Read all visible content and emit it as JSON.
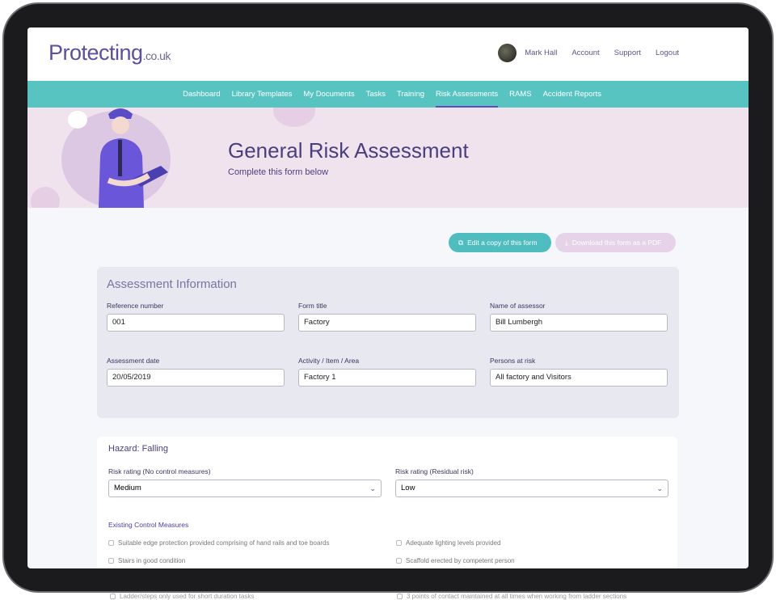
{
  "header": {
    "logo": "Protecting",
    "logo_suffix": ".co.uk",
    "user_name": "Mark Hall",
    "links": [
      "Account",
      "Support",
      "Logout"
    ]
  },
  "nav": {
    "items": [
      "Dashboard",
      "Library Templates",
      "My Documents",
      "Tasks",
      "Training",
      "Risk Assessments",
      "RAMS",
      "Accident Reports"
    ],
    "active": "Risk Assessments"
  },
  "hero": {
    "title": "General Risk Assessment",
    "subtitle": "Complete this form below"
  },
  "actions": {
    "edit_copy": "Edit a copy of this form",
    "download_pdf": "Download this form as a PDF"
  },
  "assessment": {
    "title": "Assessment Information",
    "fields": [
      {
        "label": "Reference number",
        "value": "001"
      },
      {
        "label": "Form title",
        "value": "Factory"
      },
      {
        "label": "Name of assessor",
        "value": "Bill Lumbergh"
      },
      {
        "label": "Assessment date",
        "value": "20/05/2019"
      },
      {
        "label": "Activity / Item / Area",
        "value": "Factory 1"
      },
      {
        "label": "Persons at risk",
        "value": "All factory and Visitors"
      }
    ]
  },
  "hazard": {
    "title": "Hazard: Falling",
    "risk_no_control": {
      "label": "Risk rating (No control measures)",
      "value": "Medium"
    },
    "risk_residual": {
      "label": "Risk rating (Residual risk)",
      "value": "Low"
    },
    "control_title": "Existing Control Measures",
    "controls": [
      "Suitable edge protection provided comprising of hand rails and toe boards",
      "Adequate lighting levels provided",
      "Stairs in good condition",
      "Scaffold erected by competent person"
    ],
    "controls_clipped": [
      "Ladder/steps only used for short duration tasks",
      "3 points of contact maintained at all times when working from ladder sections"
    ]
  },
  "colors": {
    "teal": "#58c4c1",
    "purple": "#5e4e9e",
    "hero_bg": "#f1e3ee",
    "disabled_button": "#e6d3ea"
  }
}
